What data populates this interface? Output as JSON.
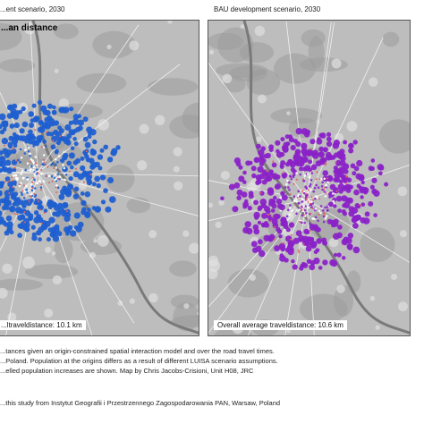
{
  "left_panel": {
    "title": "...ent scenario, 2030",
    "heading": "...an distance",
    "travel_label": "...ltraveldistance: 10.1 km",
    "dot_color": "#1f5fd0"
  },
  "right_panel": {
    "title": "BAU development scenario, 2030",
    "heading": "",
    "travel_label": "Overall average traveldistance: 10.6 km",
    "dot_color": "#8a22c8"
  },
  "map_colors": {
    "background": "#bdbdbd",
    "urban": "#e0e0e0",
    "forest": "#9d9d9d",
    "river": "#7a7a7a",
    "origins": "#e06060"
  },
  "caption_lines": [
    "...tances given an origin-constrained spatial interaction model and over the road travel times.",
    "...Poland. Population at the origins differs as a result of different LUISA scenario assumptions.",
    "...elled population increases are shown. Map by Chris Jacobs-Crisioni, Unit H08, JRC"
  ],
  "credit": "...this study from Instytut Geografii i Przestrzennego Zagospodarowania PAN, Warsaw, Poland"
}
